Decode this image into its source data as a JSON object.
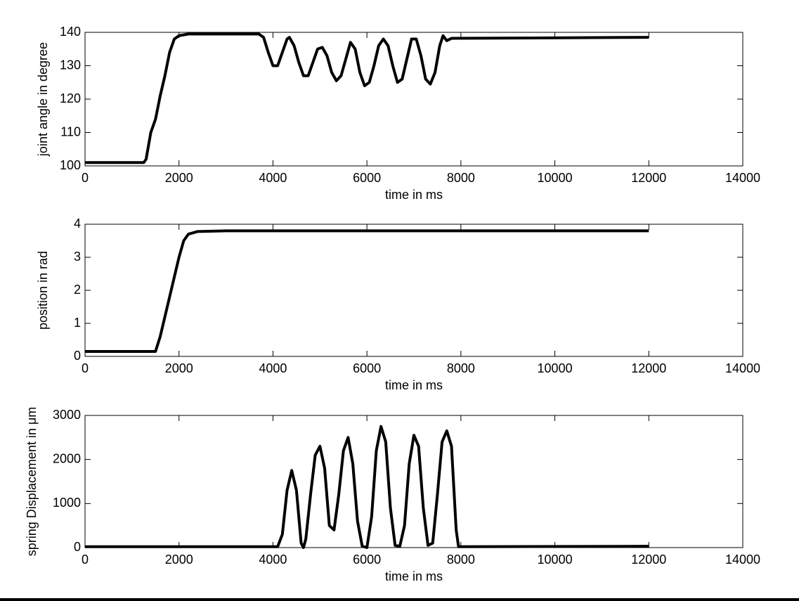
{
  "chart_data": [
    {
      "type": "line",
      "xlabel": "time in ms",
      "ylabel": "joint angle in degree",
      "xlim": [
        0,
        14000
      ],
      "xticks": [
        0,
        2000,
        4000,
        6000,
        8000,
        10000,
        12000,
        14000
      ],
      "ylim": [
        100,
        140
      ],
      "yticks": [
        100,
        110,
        120,
        130,
        140
      ],
      "color": "#000000",
      "x": [
        0,
        1250,
        1300,
        1400,
        1500,
        1600,
        1700,
        1800,
        1900,
        2000,
        2200,
        3700,
        3800,
        3900,
        4000,
        4100,
        4200,
        4300,
        4350,
        4450,
        4550,
        4650,
        4750,
        4850,
        4950,
        5050,
        5150,
        5250,
        5350,
        5450,
        5550,
        5650,
        5750,
        5850,
        5950,
        6050,
        6150,
        6250,
        6350,
        6450,
        6550,
        6650,
        6750,
        6850,
        6950,
        7050,
        7150,
        7250,
        7350,
        7450,
        7550,
        7620,
        7700,
        7800,
        12000
      ],
      "values": [
        101,
        101,
        102,
        110,
        114,
        121,
        127,
        134,
        138,
        139,
        139.5,
        139.5,
        138.5,
        134,
        130,
        130,
        134,
        138,
        138.5,
        136,
        131,
        127,
        127,
        131,
        135,
        135.5,
        133,
        128,
        125.5,
        127,
        132,
        137,
        135,
        128,
        124,
        125,
        130,
        136,
        138,
        136,
        130,
        125,
        126,
        132,
        138,
        138,
        133,
        126,
        124.5,
        128,
        136,
        139,
        137.5,
        138.2,
        138.5
      ]
    },
    {
      "type": "line",
      "xlabel": "time in ms",
      "ylabel": "position in rad",
      "xlim": [
        0,
        14000
      ],
      "xticks": [
        0,
        2000,
        4000,
        6000,
        8000,
        10000,
        12000,
        14000
      ],
      "ylim": [
        0,
        4
      ],
      "yticks": [
        0,
        1,
        2,
        3,
        4
      ],
      "color": "#000000",
      "x": [
        0,
        1500,
        1600,
        1700,
        1800,
        1900,
        2000,
        2100,
        2200,
        2400,
        3000,
        12000
      ],
      "values": [
        0.15,
        0.15,
        0.6,
        1.2,
        1.8,
        2.4,
        3.0,
        3.5,
        3.7,
        3.78,
        3.8,
        3.8
      ]
    },
    {
      "type": "line",
      "xlabel": "time in ms",
      "ylabel": "spring Displacement in μm",
      "xlim": [
        0,
        14000
      ],
      "xticks": [
        0,
        2000,
        4000,
        6000,
        8000,
        10000,
        12000,
        14000
      ],
      "ylim": [
        0,
        3000
      ],
      "yticks": [
        0,
        1000,
        2000,
        3000
      ],
      "color": "#000000",
      "x": [
        0,
        4100,
        4200,
        4300,
        4400,
        4500,
        4600,
        4650,
        4700,
        4800,
        4900,
        5000,
        5100,
        5200,
        5300,
        5400,
        5500,
        5600,
        5700,
        5800,
        5900,
        6000,
        6100,
        6200,
        6300,
        6400,
        6500,
        6600,
        6700,
        6800,
        6900,
        7000,
        7100,
        7200,
        7300,
        7400,
        7500,
        7600,
        7700,
        7800,
        7900,
        7950,
        12000
      ],
      "values": [
        20,
        20,
        300,
        1300,
        1750,
        1300,
        100,
        0,
        200,
        1200,
        2100,
        2300,
        1800,
        500,
        400,
        1200,
        2200,
        2500,
        1900,
        600,
        30,
        0,
        700,
        2200,
        2750,
        2400,
        900,
        50,
        30,
        500,
        1900,
        2550,
        2300,
        900,
        50,
        100,
        1200,
        2400,
        2650,
        2300,
        400,
        20,
        30
      ]
    }
  ]
}
